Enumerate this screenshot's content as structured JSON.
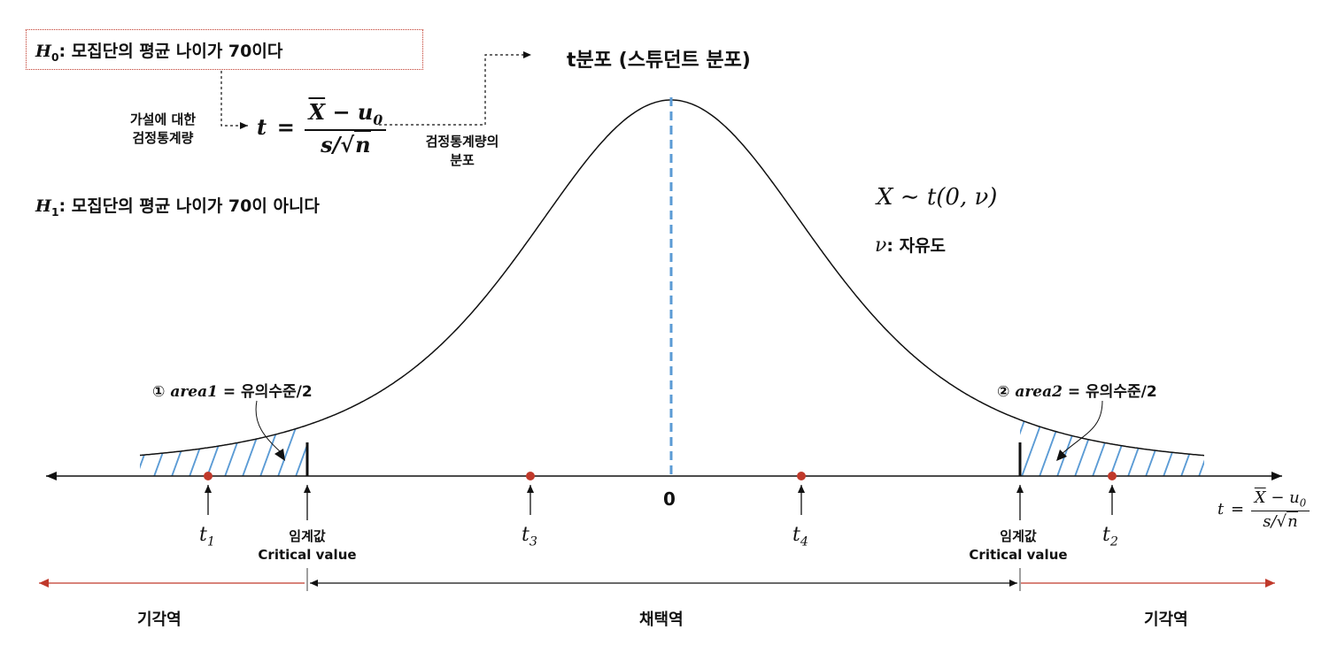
{
  "hypotheses": {
    "h0_symbol": "H",
    "h0_sub": "0",
    "h0_text": ": 모집단의 평균 나이가 70이다",
    "h1_symbol": "H",
    "h1_sub": "1",
    "h1_text": ": 모집단의 평균 나이가 70이 아니다"
  },
  "statistic": {
    "label_line1": "가설에 대한",
    "label_line2": "검정통계량",
    "t": "t",
    "equals": "=",
    "numerator_xbar": "X",
    "numerator_rest": " − u",
    "numerator_sub": "0",
    "denominator_s": "s",
    "denominator_slash": "/",
    "denominator_sqrt": "√",
    "denominator_n": "n",
    "dist_label_line1": "검정통계량의",
    "dist_label_line2": "분포"
  },
  "distribution_title": "t분포 (스튜던트 분포)",
  "dist_notation": {
    "formula": "X ∼ t(0, ν)",
    "dof_symbol": "ν",
    "dof_text": ": 자유도"
  },
  "areas": {
    "area1_circle": "①",
    "area1_var": "area1",
    "area1_rest": " = 유의수준/2",
    "area2_circle": "②",
    "area2_var": "area2",
    "area2_rest": " = 유의수준/2"
  },
  "axis": {
    "zero_label": "0",
    "axis_var_t": "t",
    "axis_var_equals": "=",
    "axis_num_x": "X",
    "axis_num_rest": " − u",
    "axis_num_sub": "0",
    "axis_den_s": "s",
    "axis_den_slash": "/",
    "axis_den_sqrt": "√",
    "axis_den_n": "n"
  },
  "points": [
    {
      "symbol": "t",
      "sub": "1"
    },
    {
      "symbol": "t",
      "sub": "3"
    },
    {
      "symbol": "t",
      "sub": "4"
    },
    {
      "symbol": "t",
      "sub": "2"
    }
  ],
  "critical": {
    "left_line1": "임계값",
    "left_line2": "Critical value",
    "right_line1": "임계값",
    "right_line2": "Critical value"
  },
  "regions": {
    "reject_left": "기각역",
    "accept": "채택역",
    "reject_right": "기각역"
  },
  "colors": {
    "curve": "#111111",
    "hatch": "#5b9bd5",
    "center_line": "#5b9bd5",
    "point": "#c0392b",
    "reject_arrow": "#c0392b",
    "box_border": "#c0392b"
  },
  "chart_data": {
    "type": "line",
    "distribution": "t",
    "mean": 0,
    "marked_points": [
      "t1",
      "t3",
      "t4",
      "t2"
    ],
    "critical_values": "two-sided",
    "rejection_region": "both tails"
  }
}
